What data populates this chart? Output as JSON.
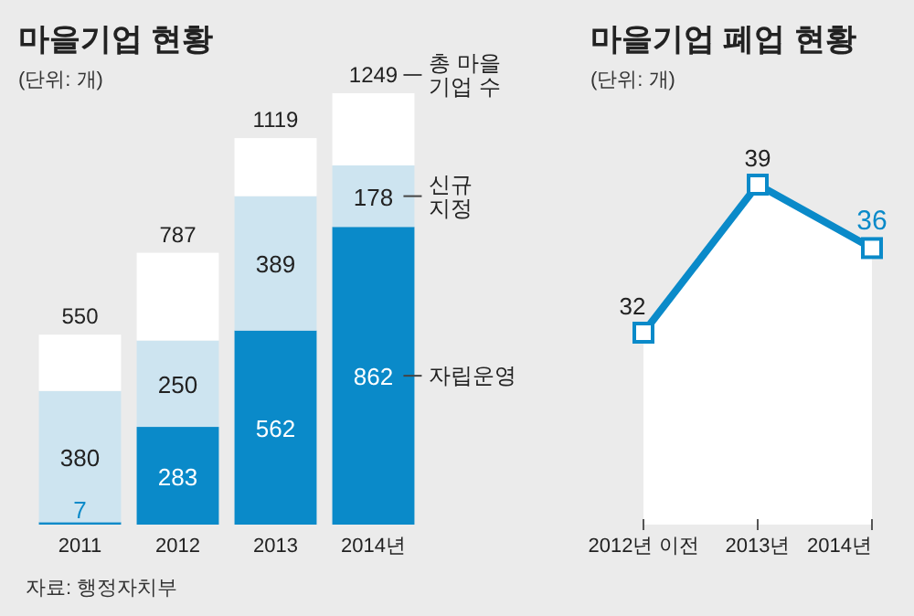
{
  "chart_data": [
    {
      "type": "bar",
      "stacked": true,
      "title": "마을기업 현황",
      "subtitle": "(단위: 개)",
      "categories": [
        "2011",
        "2012",
        "2013",
        "2014년"
      ],
      "series": [
        {
          "name": "자립운영",
          "color": "#0a8ac9",
          "values": [
            7,
            283,
            562,
            862
          ],
          "value_labels": [
            "7",
            "283",
            "562",
            "862"
          ]
        },
        {
          "name": "신규 지정",
          "color": "#cde4f0",
          "values": [
            380,
            250,
            389,
            178
          ],
          "value_labels": [
            "380",
            "250",
            "389",
            "178"
          ]
        },
        {
          "name": "총 마을 기업 수",
          "color": "#ffffff",
          "values": [
            163,
            254,
            168,
            209
          ]
        }
      ],
      "totals": [
        "550",
        "787",
        "1119",
        "1249"
      ],
      "tick_labels": "x",
      "annotations": [
        "자료: 행정자치부"
      ]
    },
    {
      "type": "area",
      "title": "마을기업 폐업 현황",
      "subtitle": "(단위: 개)",
      "categories": [
        "2012년 이전",
        "2013년",
        "2014년"
      ],
      "series": [
        {
          "color": "#0a8ac9",
          "values": [
            32,
            39,
            36
          ]
        }
      ],
      "tick_labels": "x",
      "marker": "square",
      "data_labels": true
    }
  ]
}
